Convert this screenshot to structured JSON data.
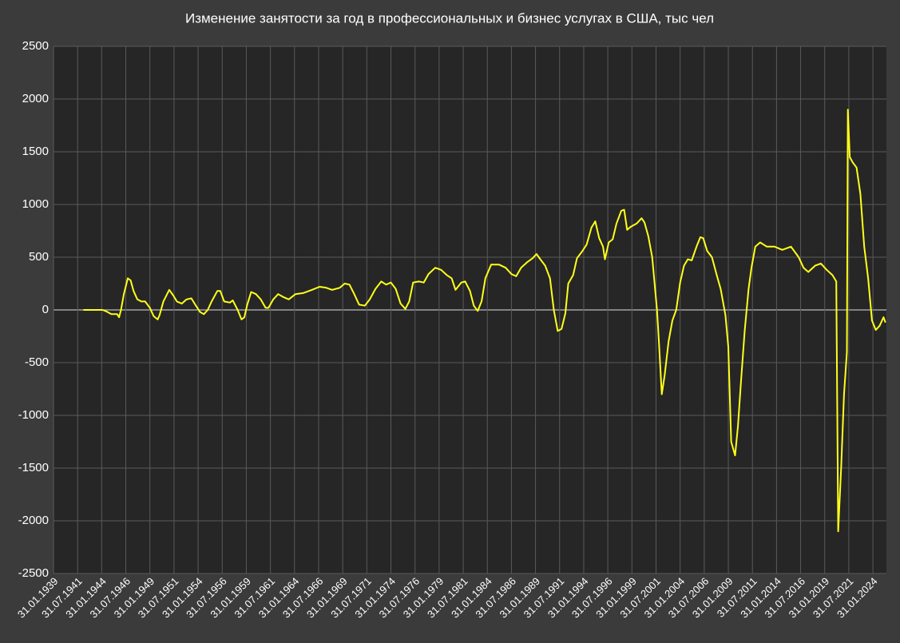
{
  "chart_data": {
    "type": "line",
    "title": "Изменение занятости за год в профессиональных и бизнес услугах в США, тыс чел",
    "x": [
      1942.1,
      1944.1,
      1944.6,
      1945.0,
      1945.6,
      1945.8,
      1946.0,
      1946.3,
      1946.7,
      1947.0,
      1947.3,
      1947.7,
      1948.1,
      1948.5,
      1949.0,
      1949.4,
      1949.8,
      1950.0,
      1950.4,
      1951.0,
      1951.4,
      1951.8,
      1952.3,
      1952.8,
      1953.3,
      1953.7,
      1954.2,
      1954.6,
      1955.0,
      1955.4,
      1956.0,
      1956.3,
      1956.7,
      1957.3,
      1957.6,
      1958.1,
      1958.5,
      1958.8,
      1959.1,
      1959.5,
      1960.0,
      1960.5,
      1961.0,
      1961.3,
      1961.8,
      1962.3,
      1962.9,
      1963.4,
      1964.1,
      1964.9,
      1965.8,
      1966.6,
      1967.3,
      1967.9,
      1968.7,
      1969.2,
      1969.7,
      1970.2,
      1970.7,
      1971.3,
      1971.8,
      1972.4,
      1973.0,
      1973.5,
      1974.0,
      1974.5,
      1975.0,
      1975.5,
      1975.9,
      1976.3,
      1976.9,
      1977.4,
      1977.9,
      1978.6,
      1979.2,
      1979.8,
      1980.3,
      1980.7,
      1981.3,
      1981.7,
      1982.2,
      1982.6,
      1983.0,
      1983.4,
      1983.8,
      1984.4,
      1985.2,
      1985.9,
      1986.5,
      1987.0,
      1987.5,
      1988.1,
      1988.7,
      1989.1,
      1989.5,
      1990.0,
      1990.5,
      1990.9,
      1991.3,
      1991.7,
      1992.1,
      1992.4,
      1992.9,
      1993.3,
      1993.8,
      1994.3,
      1994.8,
      1995.2,
      1995.6,
      1996.0,
      1996.2,
      1996.6,
      1997.0,
      1997.4,
      1997.9,
      1998.2,
      1998.5,
      1998.9,
      1999.5,
      2000.0,
      2000.3,
      2000.7,
      2001.1,
      2001.6,
      2001.8,
      2002.1,
      2002.4,
      2002.8,
      2003.2,
      2003.6,
      2004.0,
      2004.4,
      2004.8,
      2005.2,
      2005.7,
      2006.1,
      2006.4,
      2006.8,
      2007.3,
      2007.8,
      2008.2,
      2008.7,
      2009.0,
      2009.3,
      2009.7,
      2010.0,
      2010.3,
      2010.7,
      2011.1,
      2011.4,
      2011.8,
      2012.3,
      2013.0,
      2013.8,
      2014.6,
      2015.5,
      2016.3,
      2016.8,
      2017.3,
      2018.0,
      2018.6,
      2019.2,
      2019.8,
      2020.2,
      2020.4,
      2020.7,
      2021.0,
      2021.3,
      2021.4,
      2021.6,
      2021.9,
      2022.3,
      2022.7,
      2023.1,
      2023.5,
      2023.9,
      2024.3,
      2024.7,
      2025.1,
      2025.3
    ],
    "values": [
      0,
      0,
      -20,
      -40,
      -40,
      -70,
      0,
      150,
      300,
      280,
      180,
      100,
      80,
      80,
      20,
      -60,
      -90,
      -50,
      80,
      190,
      140,
      80,
      60,
      100,
      110,
      50,
      -20,
      -40,
      0,
      80,
      180,
      180,
      80,
      70,
      90,
      0,
      -90,
      -70,
      50,
      170,
      150,
      100,
      20,
      20,
      100,
      150,
      120,
      100,
      150,
      160,
      190,
      220,
      210,
      190,
      210,
      250,
      240,
      150,
      50,
      40,
      100,
      200,
      270,
      240,
      260,
      200,
      60,
      10,
      80,
      260,
      270,
      260,
      340,
      400,
      380,
      330,
      300,
      190,
      260,
      270,
      180,
      40,
      -10,
      80,
      300,
      430,
      430,
      400,
      340,
      320,
      400,
      450,
      490,
      530,
      480,
      420,
      300,
      0,
      -200,
      -180,
      -30,
      250,
      330,
      490,
      550,
      620,
      780,
      840,
      680,
      600,
      480,
      640,
      670,
      820,
      940,
      950,
      760,
      790,
      820,
      870,
      830,
      700,
      500,
      0,
      -300,
      -800,
      -620,
      -300,
      -100,
      0,
      260,
      420,
      480,
      470,
      600,
      690,
      680,
      560,
      500,
      330,
      200,
      -50,
      -350,
      -1250,
      -1380,
      -1100,
      -700,
      -200,
      200,
      400,
      600,
      640,
      600,
      600,
      570,
      600,
      500,
      400,
      360,
      420,
      440,
      380,
      330,
      270,
      -2100,
      -1500,
      -800,
      -400,
      1900,
      1450,
      1400,
      1350,
      1100,
      600,
      300,
      -100,
      -190,
      -150,
      -70,
      -120
    ],
    "color": "#ffff1a",
    "ylim": [
      -2500,
      2500
    ],
    "yticks": [
      -2500,
      -2000,
      -1500,
      -1000,
      -500,
      0,
      500,
      1000,
      1500,
      2000,
      2500
    ],
    "xlim": [
      1939,
      2025.4
    ],
    "xticks": [
      {
        "value": 1939,
        "label": "31.01.1939"
      },
      {
        "value": 1941.5,
        "label": "31.07.1941"
      },
      {
        "value": 1944,
        "label": "31.01.1944"
      },
      {
        "value": 1946.5,
        "label": "31.07.1946"
      },
      {
        "value": 1949,
        "label": "31.01.1949"
      },
      {
        "value": 1951.5,
        "label": "31.07.1951"
      },
      {
        "value": 1954,
        "label": "31.01.1954"
      },
      {
        "value": 1956.5,
        "label": "31.07.1956"
      },
      {
        "value": 1959,
        "label": "31.01.1959"
      },
      {
        "value": 1961.5,
        "label": "31.07.1961"
      },
      {
        "value": 1964,
        "label": "31.01.1964"
      },
      {
        "value": 1966.5,
        "label": "31.07.1966"
      },
      {
        "value": 1969,
        "label": "31.01.1969"
      },
      {
        "value": 1971.5,
        "label": "31.07.1971"
      },
      {
        "value": 1974,
        "label": "31.01.1974"
      },
      {
        "value": 1976.5,
        "label": "31.07.1976"
      },
      {
        "value": 1979,
        "label": "31.01.1979"
      },
      {
        "value": 1981.5,
        "label": "31.07.1981"
      },
      {
        "value": 1984,
        "label": "31.01.1984"
      },
      {
        "value": 1986.5,
        "label": "31.07.1986"
      },
      {
        "value": 1989,
        "label": "31.01.1989"
      },
      {
        "value": 1991.5,
        "label": "31.07.1991"
      },
      {
        "value": 1994,
        "label": "31.01.1994"
      },
      {
        "value": 1996.5,
        "label": "31.07.1996"
      },
      {
        "value": 1999,
        "label": "31.01.1999"
      },
      {
        "value": 2001.5,
        "label": "31.07.2001"
      },
      {
        "value": 2004,
        "label": "31.01.2004"
      },
      {
        "value": 2006.5,
        "label": "31.07.2006"
      },
      {
        "value": 2009,
        "label": "31.01.2009"
      },
      {
        "value": 2011.5,
        "label": "31.07.2011"
      },
      {
        "value": 2014,
        "label": "31.01.2014"
      },
      {
        "value": 2016.5,
        "label": "31.07.2016"
      },
      {
        "value": 2019,
        "label": "31.01.2019"
      },
      {
        "value": 2021.5,
        "label": "31.07.2021"
      },
      {
        "value": 2024,
        "label": "31.01.2024"
      }
    ],
    "grid": true
  }
}
